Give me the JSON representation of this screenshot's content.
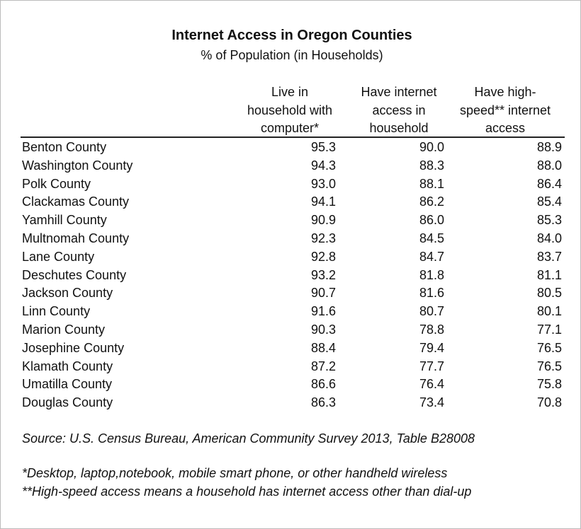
{
  "title": "Internet Access in Oregon Counties",
  "subtitle": "% of Population (in Households)",
  "table": {
    "headers": [
      [
        "Live in",
        "household with",
        "computer*"
      ],
      [
        "Have internet",
        "access in",
        "household"
      ],
      [
        "Have high-",
        "speed** internet",
        "access"
      ]
    ],
    "rows": [
      [
        "Benton County",
        "95.3",
        "90.0",
        "88.9"
      ],
      [
        "Washington County",
        "94.3",
        "88.3",
        "88.0"
      ],
      [
        "Polk County",
        "93.0",
        "88.1",
        "86.4"
      ],
      [
        "Clackamas County",
        "94.1",
        "86.2",
        "85.4"
      ],
      [
        "Yamhill County",
        "90.9",
        "86.0",
        "85.3"
      ],
      [
        "Multnomah County",
        "92.3",
        "84.5",
        "84.0"
      ],
      [
        "Lane County",
        "92.8",
        "84.7",
        "83.7"
      ],
      [
        "Deschutes County",
        "93.2",
        "81.8",
        "81.1"
      ],
      [
        "Jackson County",
        "90.7",
        "81.6",
        "80.5"
      ],
      [
        "Linn County",
        "91.6",
        "80.7",
        "80.1"
      ],
      [
        "Marion County",
        "90.3",
        "78.8",
        "77.1"
      ],
      [
        "Josephine County",
        "88.4",
        "79.4",
        "76.5"
      ],
      [
        "Klamath County",
        "87.2",
        "77.7",
        "76.5"
      ],
      [
        "Umatilla County",
        "86.6",
        "76.4",
        "75.8"
      ],
      [
        "Douglas County",
        "86.3",
        "73.4",
        "70.8"
      ]
    ]
  },
  "source": "Source: U.S. Census Bureau, American Community Survey 2013, Table B28008",
  "footnotes": [
    "*Desktop, laptop,notebook, mobile smart phone, or other handheld wireless",
    "**High-speed access means a household has internet access other than dial-up"
  ]
}
